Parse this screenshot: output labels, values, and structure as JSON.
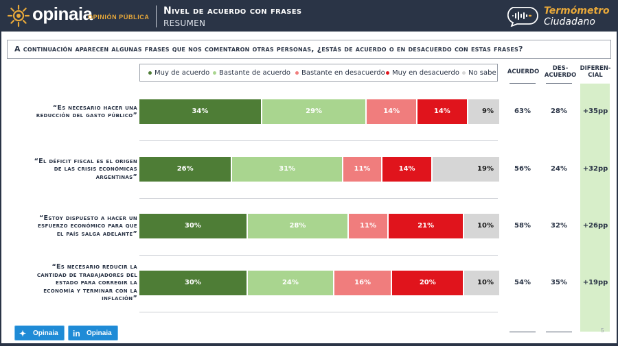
{
  "header": {
    "logo_text": "opinaia",
    "logo_subtext": "OPINIÓN PÚBLICA",
    "title": "Nivel de acuerdo con frases",
    "subtitle": "RESUMEN",
    "brand_line1": "Termómetro",
    "brand_line2": "Ciudadano"
  },
  "question": "A continuación aparecen algunas frases que nos comentaron otras personas, ¿estás de acuerdo o en desacuerdo con estas frases?",
  "columns": {
    "acuerdo": "ACUERDO",
    "desacuerdo_1": "DES-",
    "desacuerdo_2": "ACUERDO",
    "diferencial_1": "DIFEREN-",
    "diferencial_2": "CIAL"
  },
  "chart_data": {
    "type": "bar",
    "stacked": true,
    "orientation": "horizontal",
    "legend_position": "top",
    "categories": [
      "“Es necesario hacer una reducción del gasto público”",
      "“El déficit fiscal es el origen de las crisis económicas argentinas”",
      "“Estoy dispuesto a hacer un esfuerzo económico para que el país salga adelante”",
      "“Es necesario reducir la cantidad de trabajadores del estado para corregir la economía y terminar con la inflación”"
    ],
    "series": [
      {
        "name": "Muy de acuerdo",
        "color": "#4e7d36",
        "values": [
          34,
          26,
          30,
          30
        ],
        "labels": [
          "34%",
          "26%",
          "30%",
          "30%"
        ]
      },
      {
        "name": "Bastante de acuerdo",
        "color": "#a9d58f",
        "values": [
          29,
          31,
          28,
          24
        ],
        "labels": [
          "29%",
          "31%",
          "28%",
          "24%"
        ]
      },
      {
        "name": "Bastante en desacuerdo",
        "color": "#f07d7d",
        "values": [
          14,
          11,
          11,
          16
        ],
        "labels": [
          "14%",
          "11%",
          "11%",
          "16%"
        ]
      },
      {
        "name": "Muy en desacuerdo",
        "color": "#e0141c",
        "values": [
          14,
          14,
          21,
          20
        ],
        "labels": [
          "14%",
          "14%",
          "21%",
          "20%"
        ]
      },
      {
        "name": "No sabe",
        "color": "#d6d6d6",
        "values": [
          9,
          19,
          10,
          10
        ],
        "labels": [
          "9%",
          "19%",
          "10%",
          "10%"
        ]
      }
    ],
    "acuerdo": [
      "63%",
      "56%",
      "58%",
      "54%"
    ],
    "desacuerdo": [
      "28%",
      "24%",
      "32%",
      "35%"
    ],
    "diferencial": [
      "+35pp",
      "+32pp",
      "+26pp",
      "+19pp"
    ]
  },
  "footer": {
    "twitter": "Opinaia",
    "linkedin": "Opinaia",
    "page": "5"
  },
  "colors": {
    "header_bg": "#2a3446",
    "accent": "#e9a93a",
    "diff_bg": "#d7eec9",
    "button": "#1f8bd6"
  }
}
